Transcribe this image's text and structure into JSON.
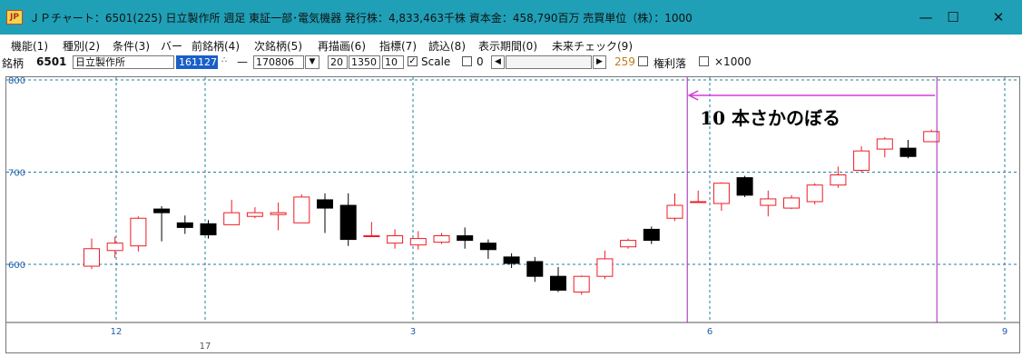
{
  "window": {
    "title": "ＪＰチャート：6501(225) 日立製作所 週足 東証一部･電気機器 発行株：4,833,463千株 資本金：458,790百万 売買単位（株）：1000",
    "minimize_glyph": "—",
    "maximize_glyph": "☐",
    "close_glyph": "✕"
  },
  "menu": [
    "機能(1)",
    "種別(2)",
    "条件(3)",
    "バー",
    "前銘柄(4)",
    "次銘柄(5)",
    "再描画(6)",
    "指標(7)",
    "読込(8)",
    "表示期間(0)",
    "未来チェック(9)"
  ],
  "toolbar": {
    "label": "銘柄",
    "code": "6501",
    "name": "日立製作所",
    "from_date": "161127",
    "dash": "—",
    "to_date": "170806",
    "field1": "20",
    "field2": "1350",
    "field3": "10",
    "scale_label": "Scale",
    "zero_label": "0",
    "count": "259",
    "kenri_label": "権利落",
    "x1000_label": "×1000"
  },
  "chart_data": {
    "type": "candlestick",
    "ylim": [
      535,
      800
    ],
    "yticks": [
      600,
      700,
      800
    ],
    "ytick_labels": [
      "600",
      "700",
      "800"
    ],
    "xtick_labels": [
      "12",
      "3",
      "6",
      "9"
    ],
    "sub_label": "17",
    "annotation": "10 本さかのぼる",
    "grid": true,
    "up_color": "#ee1c25",
    "down_color": "#000000",
    "vline_color": "#9b27b0",
    "arrow_color": "#d63bd6",
    "candles": [
      {
        "o": 598,
        "h": 628,
        "l": 595,
        "c": 617
      },
      {
        "o": 615,
        "h": 630,
        "l": 607,
        "c": 623
      },
      {
        "o": 620,
        "h": 652,
        "l": 614,
        "c": 650
      },
      {
        "o": 660,
        "h": 663,
        "l": 625,
        "c": 656
      },
      {
        "o": 645,
        "h": 653,
        "l": 633,
        "c": 640
      },
      {
        "o": 644,
        "h": 648,
        "l": 628,
        "c": 632
      },
      {
        "o": 643,
        "h": 670,
        "l": 643,
        "c": 656
      },
      {
        "o": 652,
        "h": 662,
        "l": 650,
        "c": 656
      },
      {
        "o": 654,
        "h": 667,
        "l": 637,
        "c": 656
      },
      {
        "o": 645,
        "h": 676,
        "l": 645,
        "c": 673
      },
      {
        "o": 670,
        "h": 677,
        "l": 634,
        "c": 661
      },
      {
        "o": 664,
        "h": 677,
        "l": 620,
        "c": 627
      },
      {
        "o": 631,
        "h": 646,
        "l": 630,
        "c": 631
      },
      {
        "o": 623,
        "h": 638,
        "l": 617,
        "c": 631
      },
      {
        "o": 621,
        "h": 636,
        "l": 616,
        "c": 628
      },
      {
        "o": 624,
        "h": 634,
        "l": 622,
        "c": 631
      },
      {
        "o": 631,
        "h": 640,
        "l": 617,
        "c": 626
      },
      {
        "o": 623,
        "h": 627,
        "l": 606,
        "c": 616
      },
      {
        "o": 608,
        "h": 612,
        "l": 596,
        "c": 601
      },
      {
        "o": 603,
        "h": 608,
        "l": 581,
        "c": 587
      },
      {
        "o": 587,
        "h": 597,
        "l": 570,
        "c": 572
      },
      {
        "o": 570,
        "h": 588,
        "l": 567,
        "c": 587
      },
      {
        "o": 587,
        "h": 615,
        "l": 584,
        "c": 606
      },
      {
        "o": 619,
        "h": 628,
        "l": 617,
        "c": 626
      },
      {
        "o": 638,
        "h": 641,
        "l": 622,
        "c": 626
      },
      {
        "o": 650,
        "h": 677,
        "l": 647,
        "c": 664
      },
      {
        "o": 668,
        "h": 680,
        "l": 667,
        "c": 668
      },
      {
        "o": 666,
        "h": 689,
        "l": 658,
        "c": 688
      },
      {
        "o": 694,
        "h": 696,
        "l": 673,
        "c": 675
      },
      {
        "o": 664,
        "h": 680,
        "l": 652,
        "c": 671
      },
      {
        "o": 661,
        "h": 675,
        "l": 660,
        "c": 672
      },
      {
        "o": 668,
        "h": 688,
        "l": 665,
        "c": 686
      },
      {
        "o": 686,
        "h": 706,
        "l": 683,
        "c": 697
      },
      {
        "o": 702,
        "h": 728,
        "l": 700,
        "c": 723
      },
      {
        "o": 725,
        "h": 738,
        "l": 716,
        "c": 736
      },
      {
        "o": 726,
        "h": 735,
        "l": 715,
        "c": 717
      },
      {
        "o": 733,
        "h": 746,
        "l": 733,
        "c": 744
      }
    ]
  }
}
